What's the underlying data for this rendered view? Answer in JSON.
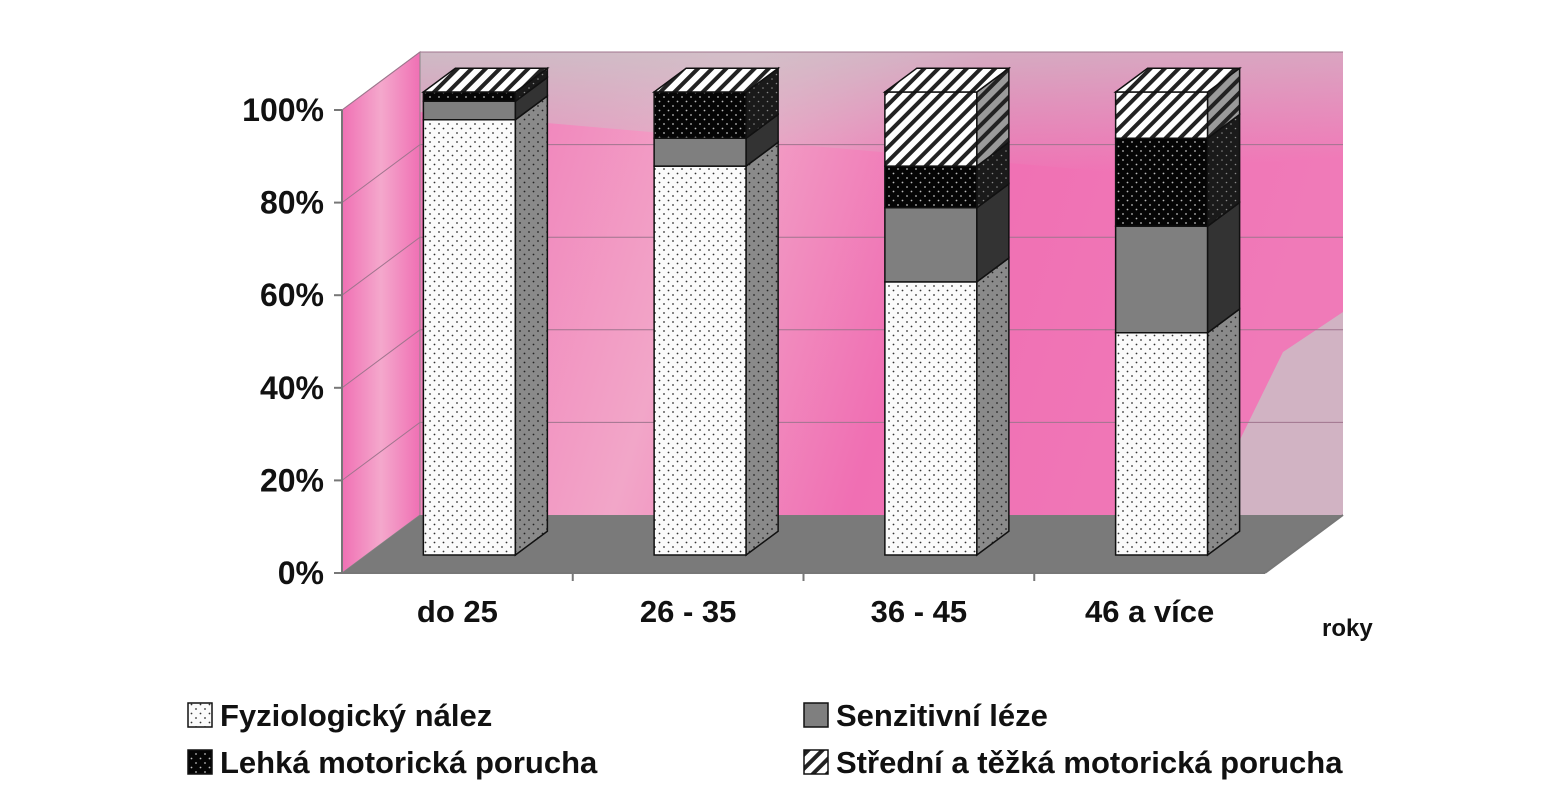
{
  "chart_data": {
    "type": "bar",
    "stacked": true,
    "percent_stacked": true,
    "three_d": true,
    "title": "",
    "xlabel": "",
    "ylabel": "",
    "x_unit_label": "roky",
    "categories": [
      "do 25",
      "26 - 35",
      "36 - 45",
      "46 a více"
    ],
    "ylim": [
      0,
      100
    ],
    "yticks": [
      "0%",
      "20%",
      "40%",
      "60%",
      "80%",
      "100%"
    ],
    "grid": true,
    "legend_position": "bottom",
    "series": [
      {
        "name": "Fyziologický nález",
        "values": [
          94,
          84,
          59,
          48
        ],
        "pattern": "dots-on-white"
      },
      {
        "name": "Senzitivní léze",
        "values": [
          4,
          6,
          16,
          23
        ],
        "pattern": "solid-gray"
      },
      {
        "name": "Lehká motorická porucha",
        "values": [
          2,
          10,
          9,
          19
        ],
        "pattern": "dots-on-black"
      },
      {
        "name": "Střední a těžká motorická porucha",
        "values": [
          0,
          0,
          16,
          10
        ],
        "pattern": "diagonal-hatch"
      }
    ],
    "colors": {
      "back_wall": "#f27fbc",
      "side_wall": "#f27fbc",
      "floor": "#7a7a7a",
      "gridline": "#a0758e",
      "senzitivni": "#7f7f7f",
      "lehka": "#050505"
    }
  }
}
